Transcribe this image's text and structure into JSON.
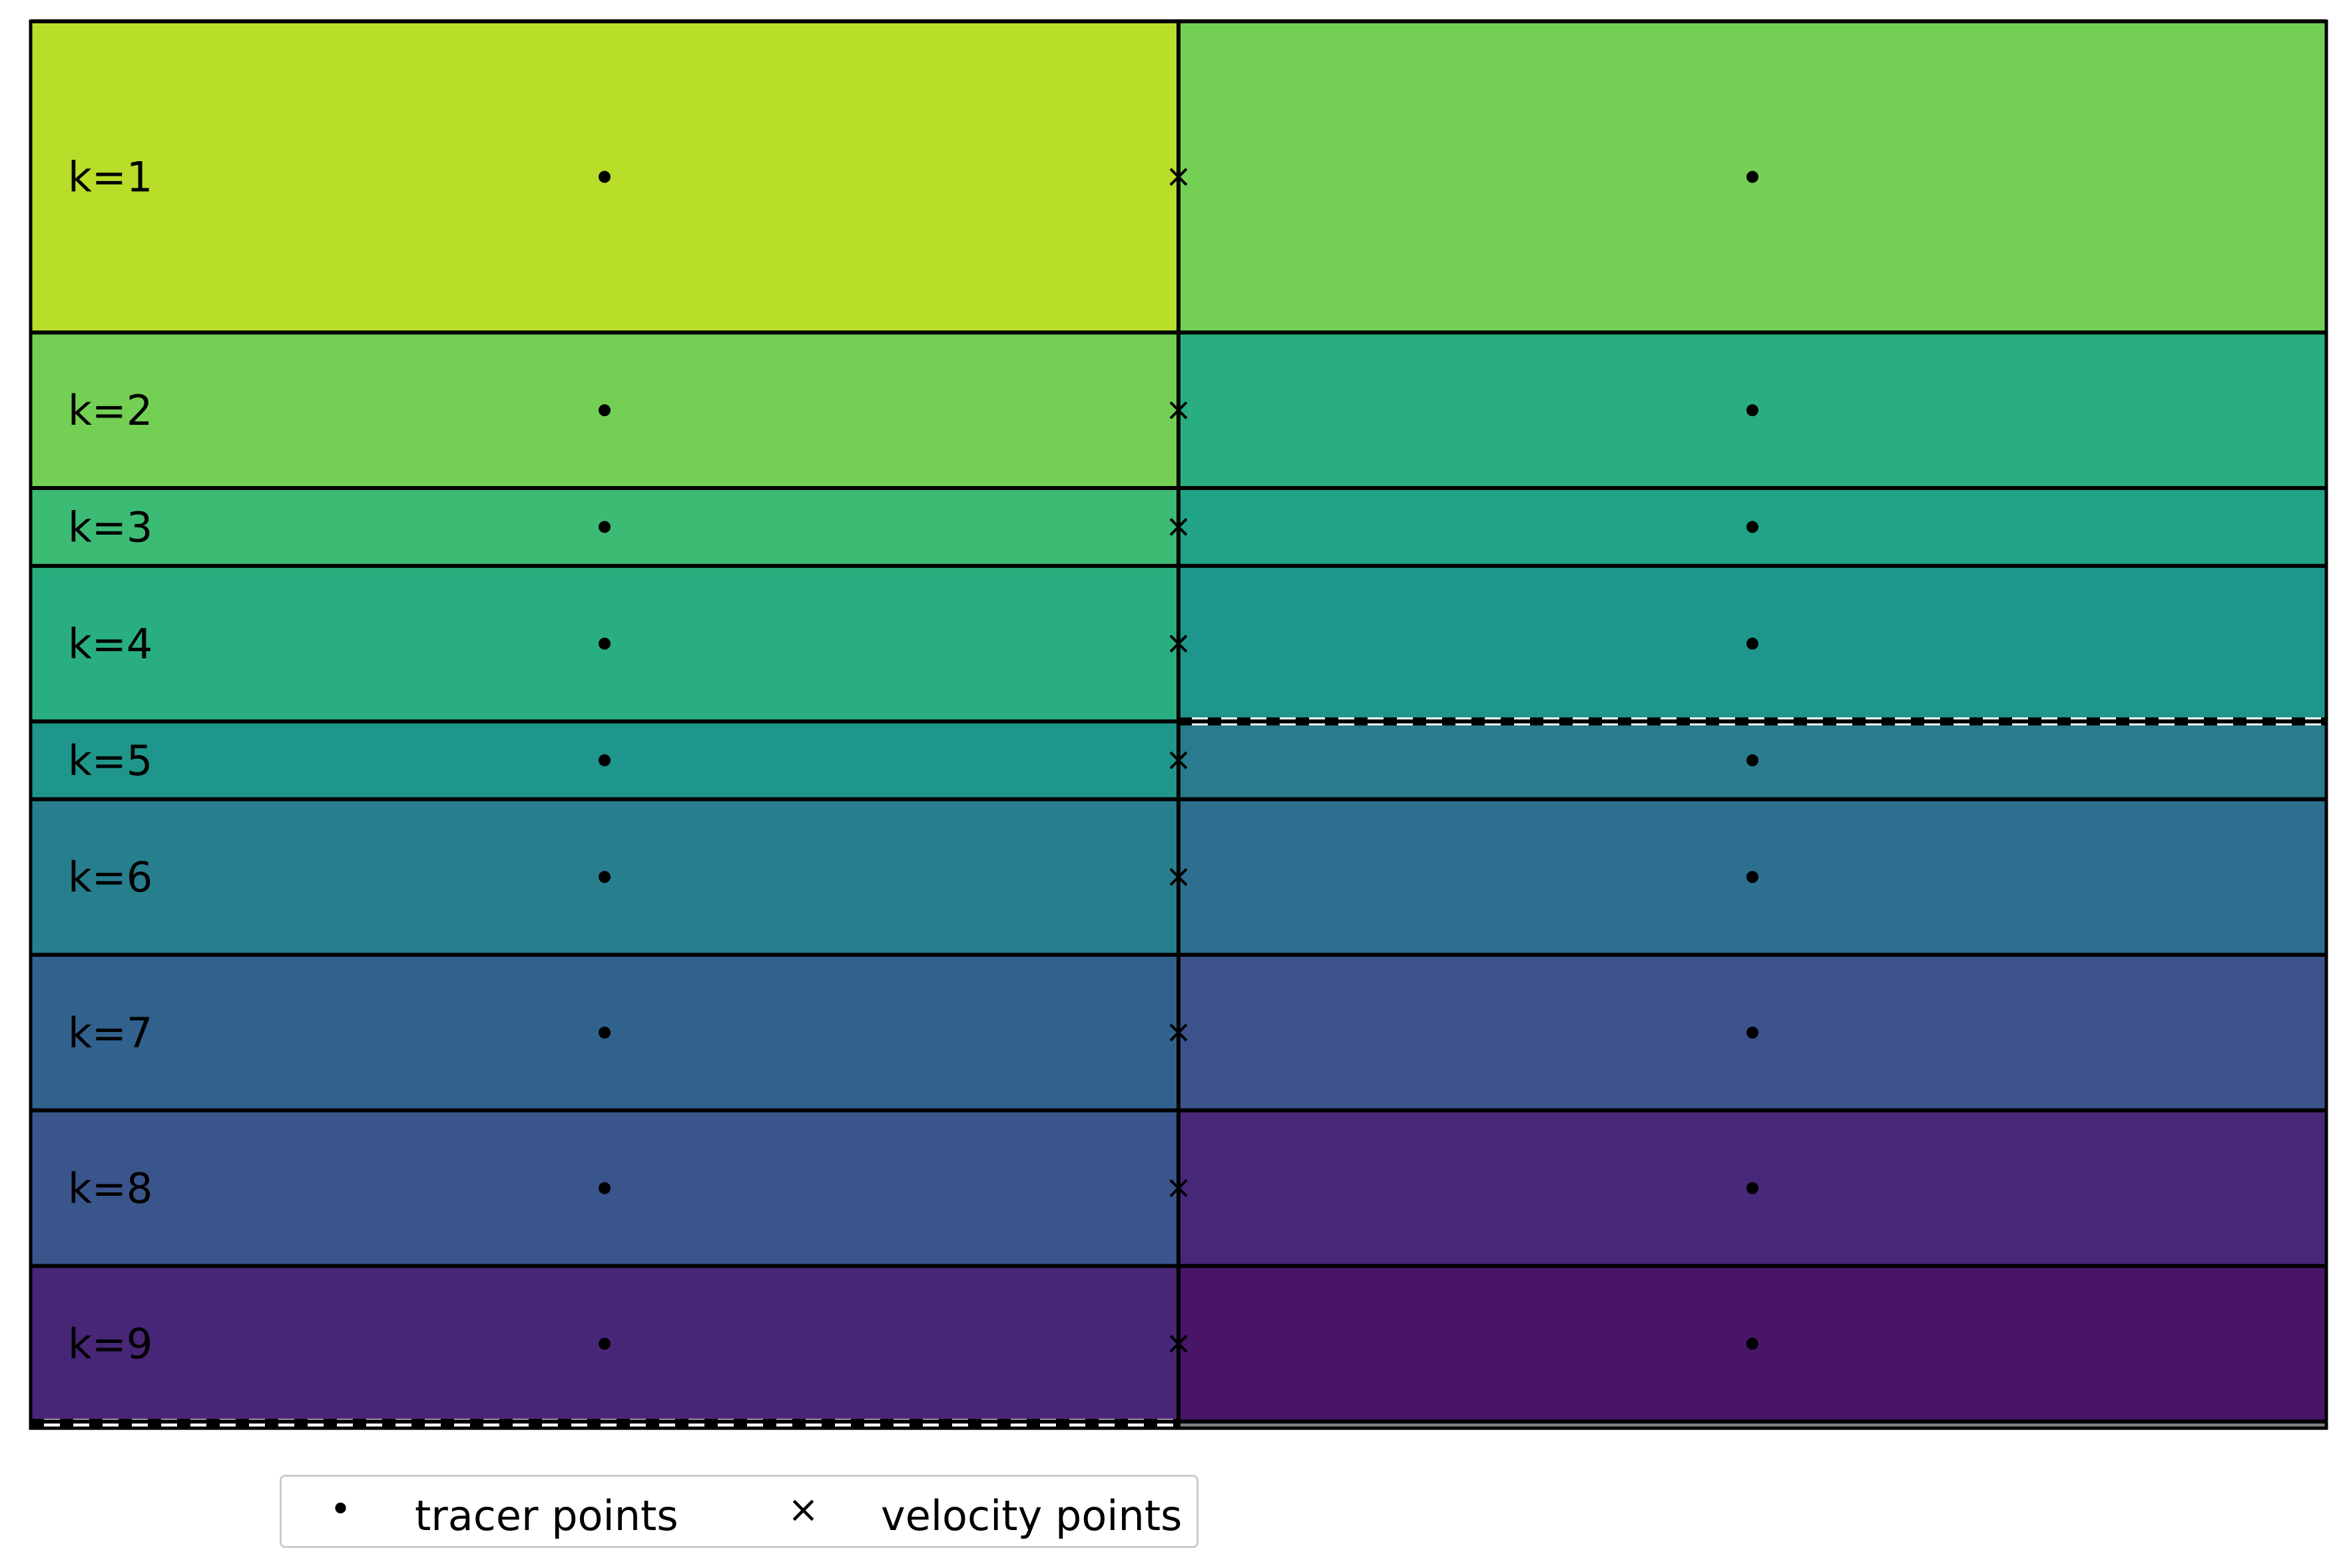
{
  "diagram": {
    "layer_labels": [
      "k=1",
      "k=2",
      "k=3",
      "k=4",
      "k=5",
      "k=6",
      "k=7",
      "k=8",
      "k=9"
    ],
    "layer_thickness": [
      2.0,
      1.0,
      0.5,
      1.0,
      0.5,
      1.0,
      1.0,
      1.0,
      1.0
    ],
    "left_column": {
      "colors": [
        "#b8de29",
        "#73d055",
        "#3cbb75",
        "#29af7f",
        "#1f968b",
        "#277f8e",
        "#31628e",
        "#39558c",
        "#482677"
      ],
      "bottom_marker_below_layer": 9
    },
    "right_column": {
      "colors": [
        "#73d055",
        "#29af7f",
        "#20a386",
        "#1f968b",
        "#287c8e",
        "#2d6f8e",
        "#3b528b",
        "#482878",
        "#481567"
      ],
      "bottom_marker_below_layer": 4
    },
    "tracer_marker": "dot",
    "velocity_marker": "x"
  },
  "legend": {
    "tracer_label": "tracer points",
    "velocity_label": "velocity points",
    "tracer_symbol": "•",
    "velocity_symbol": "×"
  }
}
